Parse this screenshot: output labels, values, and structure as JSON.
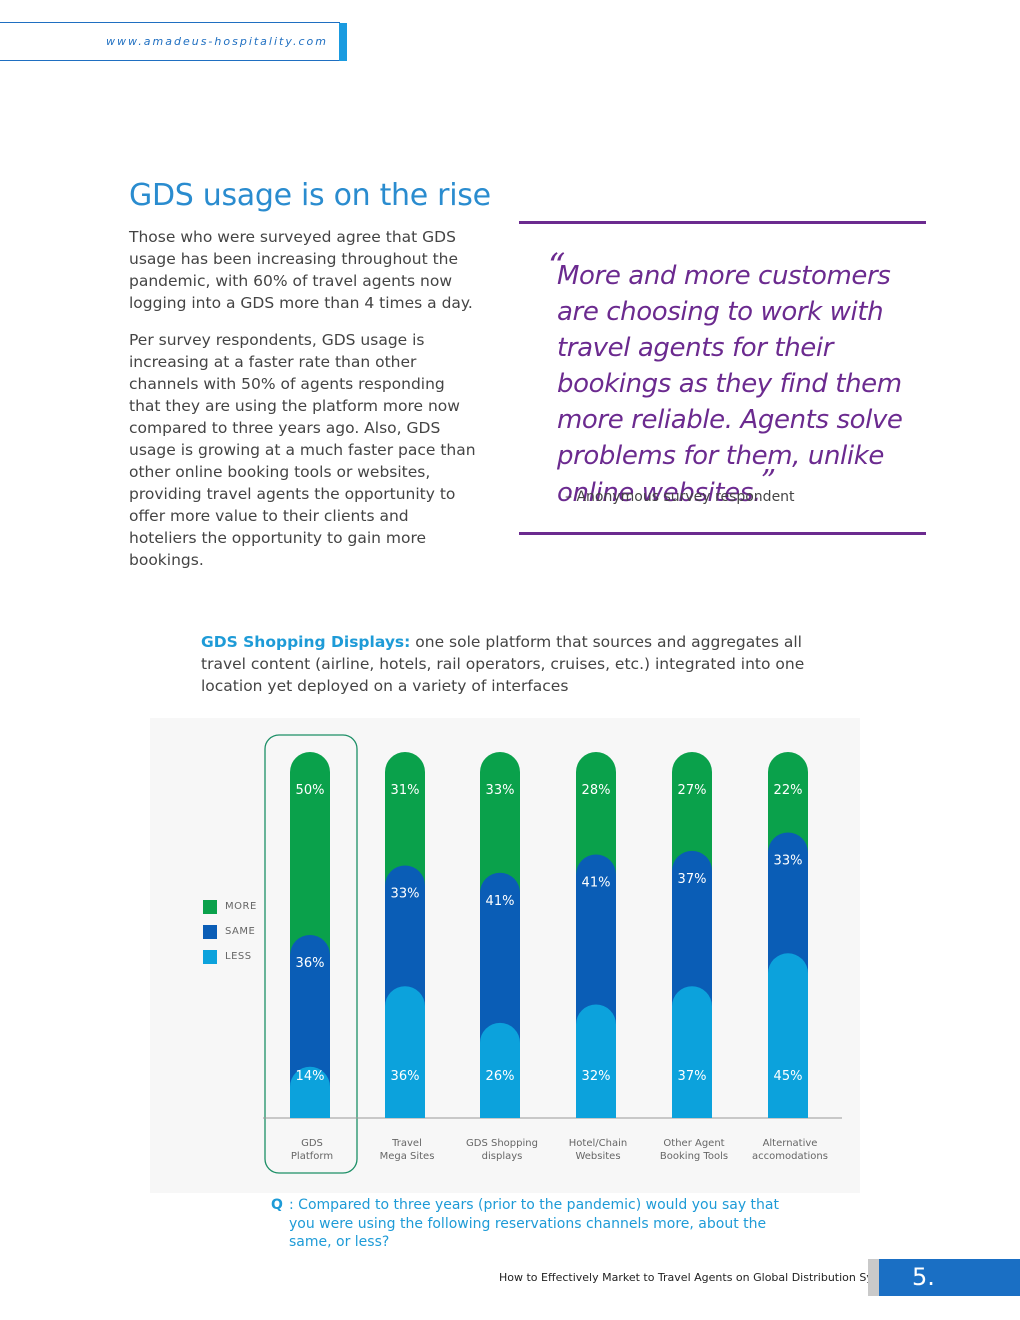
{
  "header": {
    "url": "www.amadeus-hospitality.com"
  },
  "section": {
    "heading": "GDS usage is on the rise",
    "para1": "Those who were surveyed agree that GDS usage has been increasing throughout the pandemic, with 60% of travel agents now logging into a GDS more than 4 times a day.",
    "para2": "Per survey respondents, GDS usage is increasing at a faster rate than other channels with 50% of agents responding that they are using the platform more now compared to three years ago. Also, GDS usage is growing at a much faster pace than other online booking tools or websites, providing travel agents the opportunity to offer more value to their clients and hoteliers the opportunity to gain more bookings."
  },
  "quote": {
    "open_mark": "“",
    "text": "More and more customers are choosing to work with travel agents for their bookings as they find them more reliable. Agents solve problems for them, unlike online websites.",
    "close_mark": "”",
    "attribution": "–  Anonymous survey respondent"
  },
  "intro": {
    "lead": "GDS Shopping Displays:",
    "text": " one sole platform that sources and aggregates all travel content (airline, hotels, rail operators, cruises, etc.) integrated into one location yet deployed on a variety of interfaces"
  },
  "colors": {
    "more": "#0aa14b",
    "same": "#0a5db6",
    "less": "#0ca2dc",
    "highlight": "#1c8f66"
  },
  "legend": [
    {
      "label": "MORE",
      "key": "more"
    },
    {
      "label": "SAME",
      "key": "same"
    },
    {
      "label": "LESS",
      "key": "less"
    }
  ],
  "chart_data": {
    "type": "bar",
    "stacked": true,
    "categories": [
      [
        "GDS",
        "Platform"
      ],
      [
        "Travel",
        "Mega Sites"
      ],
      [
        "GDS Shopping",
        "displays"
      ],
      [
        "Hotel/Chain",
        "Websites"
      ],
      [
        "Other Agent",
        "Booking Tools"
      ],
      [
        "Alternative",
        "accomodations"
      ]
    ],
    "highlighted_category": 0,
    "series": [
      {
        "name": "LESS",
        "key": "less",
        "values": [
          14,
          36,
          26,
          32,
          37,
          45
        ]
      },
      {
        "name": "SAME",
        "key": "same",
        "values": [
          36,
          33,
          41,
          41,
          37,
          33
        ]
      },
      {
        "name": "MORE",
        "key": "more",
        "values": [
          50,
          31,
          33,
          28,
          27,
          22
        ]
      }
    ],
    "value_suffix": "%"
  },
  "question": {
    "marker": "Q",
    "text": ": Compared to three years (prior to the pandemic) would you say that you were using the following reservations channels more, about the same, or less?"
  },
  "footer": {
    "title": "How to Effectively Market to Travel Agents on Global Distribution Systems",
    "page": "5."
  }
}
